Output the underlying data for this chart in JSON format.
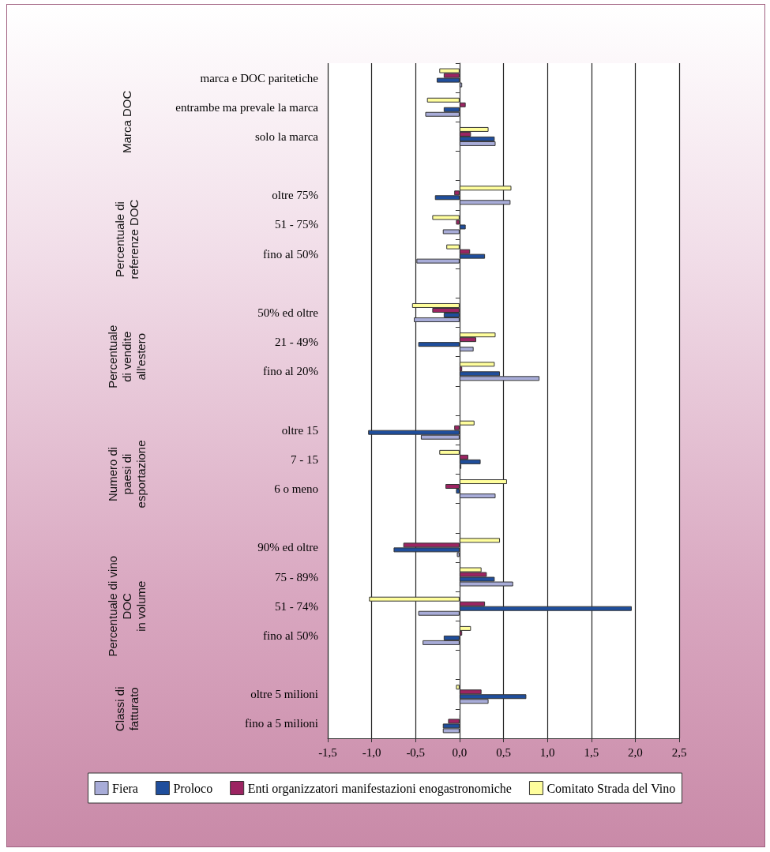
{
  "chart_data": {
    "type": "bar",
    "orientation": "horizontal",
    "categories": [
      "marca e DOC paritetiche",
      "entrambe ma prevale la marca",
      "solo la marca",
      null,
      "oltre 75%",
      "51 - 75%",
      "fino al 50%",
      null,
      "50% ed oltre",
      "21 - 49%",
      "fino al 20%",
      null,
      "oltre 15",
      "7 - 15",
      "6 o meno",
      null,
      "90% ed oltre",
      "75 - 89%",
      "51 - 74%",
      "fino al 50%",
      null,
      "oltre 5 milioni",
      "fino a 5 milioni"
    ],
    "series": [
      {
        "name": "Fiera",
        "color": "#a8acd8",
        "values": [
          0.03,
          -0.39,
          0.41,
          null,
          0.58,
          -0.19,
          -0.49,
          null,
          -0.52,
          0.16,
          0.91,
          null,
          -0.44,
          0.02,
          0.41,
          null,
          -0.03,
          0.61,
          -0.47,
          -0.42,
          null,
          0.33,
          -0.19
        ]
      },
      {
        "name": "Proloco",
        "color": "#1f4e9c",
        "values": [
          -0.26,
          -0.18,
          0.4,
          null,
          -0.28,
          0.07,
          0.29,
          null,
          -0.18,
          -0.47,
          0.46,
          null,
          -1.04,
          0.24,
          -0.04,
          null,
          -0.75,
          0.4,
          1.96,
          -0.18,
          null,
          0.76,
          -0.19
        ]
      },
      {
        "name": "Enti organizzatori manifestazioni enogastronomiche",
        "color": "#9c2462",
        "values": [
          -0.18,
          0.07,
          0.13,
          null,
          -0.06,
          -0.04,
          0.12,
          null,
          -0.31,
          0.19,
          0.03,
          null,
          -0.06,
          0.1,
          -0.16,
          null,
          -0.64,
          0.31,
          0.29,
          0.03,
          null,
          0.25,
          -0.13
        ]
      },
      {
        "name": "Comitato Strada del Vino",
        "color": "#fffe9c",
        "values": [
          -0.23,
          -0.37,
          0.33,
          null,
          0.59,
          -0.31,
          -0.15,
          null,
          -0.54,
          0.41,
          0.4,
          null,
          0.17,
          -0.23,
          0.54,
          null,
          0.46,
          0.25,
          -1.03,
          0.13,
          null,
          -0.04,
          0.01
        ]
      }
    ],
    "xlim": [
      -1.5,
      2.5
    ],
    "xticks": [
      {
        "value": -1.5,
        "label": "-1,5"
      },
      {
        "value": -1,
        "label": "-1,0"
      },
      {
        "value": -0.5,
        "label": "-0,5"
      },
      {
        "value": 0,
        "label": "0,0"
      },
      {
        "value": 0.5,
        "label": "0,5"
      },
      {
        "value": 1,
        "label": "1,0"
      },
      {
        "value": 1.5,
        "label": "1,5"
      },
      {
        "value": 2,
        "label": "2,0"
      },
      {
        "value": 2.5,
        "label": "2,5"
      }
    ],
    "annotations": [
      "Marca DOC",
      "Percentuale di\nreferenze DOC",
      "Percentuale\ndi vendite\nall'estero",
      "Numero di\npaesi di\nesportazione",
      "Percentuale di vino\nDOC\nin volume",
      "Classi di\nfatturato"
    ],
    "grid": "x",
    "legend": "bottom"
  }
}
